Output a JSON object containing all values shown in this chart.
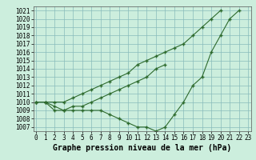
{
  "title": "Graphe pression niveau de la mer (hPa)",
  "bg_color": "#cceedd",
  "grid_color": "#88bbbb",
  "line_color": "#2d6a2d",
  "marker": "+",
  "x": [
    0,
    1,
    2,
    3,
    4,
    5,
    6,
    7,
    8,
    9,
    10,
    11,
    12,
    13,
    14,
    15,
    16,
    17,
    18,
    19,
    20,
    21,
    22,
    23
  ],
  "series": [
    [
      1010,
      1010,
      1009,
      1009,
      1009,
      1009,
      1009,
      1009,
      1008.5,
      1008,
      1007.5,
      1007,
      1007,
      1006.5,
      1007,
      1008.5,
      1010,
      1012,
      1013,
      1016,
      1018,
      1020,
      1021,
      null
    ],
    [
      1010,
      1010,
      1009.5,
      1009,
      1009.5,
      1009.5,
      1010,
      1010.5,
      1011,
      1011.5,
      1012,
      1012.5,
      1013,
      1014,
      1014.5,
      null,
      null,
      null,
      null,
      null,
      null,
      null,
      null,
      null
    ],
    [
      1010,
      1010,
      1010,
      1010,
      1010.5,
      1011,
      1011.5,
      1012,
      1012.5,
      1013,
      1013.5,
      1014.5,
      1015,
      1015.5,
      1016,
      1016.5,
      1017,
      1018,
      1019,
      1020,
      1021,
      null,
      null,
      null
    ]
  ],
  "xlim": [
    -0.3,
    23.3
  ],
  "ylim": [
    1006.5,
    1021.5
  ],
  "yticks": [
    1007,
    1008,
    1009,
    1010,
    1011,
    1012,
    1013,
    1014,
    1015,
    1016,
    1017,
    1018,
    1019,
    1020,
    1021
  ],
  "xticks": [
    0,
    1,
    2,
    3,
    4,
    5,
    6,
    7,
    8,
    9,
    10,
    11,
    12,
    13,
    14,
    15,
    16,
    17,
    18,
    19,
    20,
    21,
    22,
    23
  ],
  "title_fontsize": 7,
  "tick_fontsize": 5.5
}
